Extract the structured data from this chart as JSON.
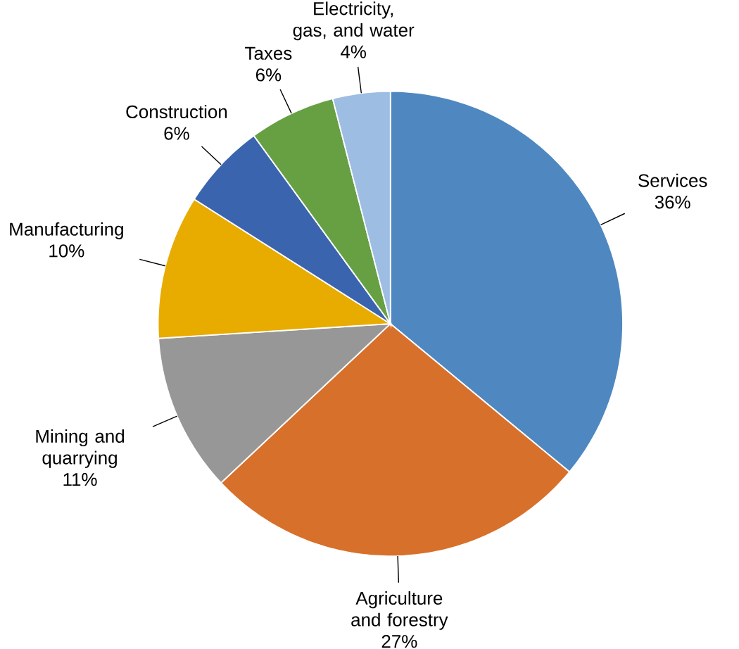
{
  "chart_data": {
    "type": "pie",
    "categories": [
      "Services",
      "Agriculture and forestry",
      "Mining and quarrying",
      "Manufacturing",
      "Construction",
      "Taxes",
      "Electricity, gas, and water"
    ],
    "values": [
      36,
      27,
      11,
      10,
      6,
      6,
      4
    ],
    "value_labels": [
      "36%",
      "27%",
      "11%",
      "10%",
      "6%",
      "6%",
      "4%"
    ],
    "colors": [
      "#4f88c0",
      "#d7702b",
      "#979797",
      "#e8ab00",
      "#3b64ae",
      "#66a043",
      "#9dbde3"
    ]
  }
}
